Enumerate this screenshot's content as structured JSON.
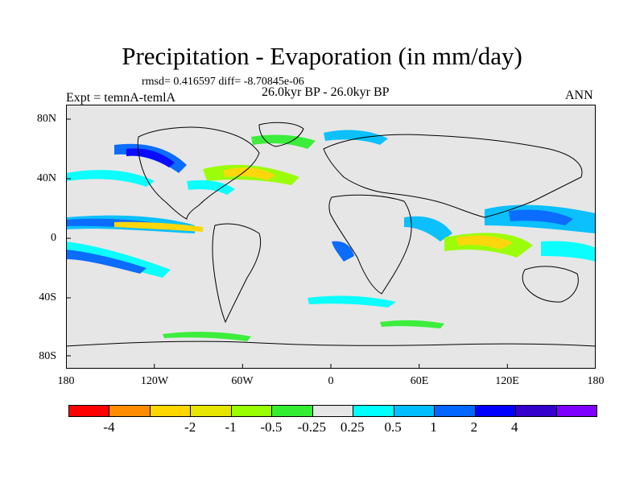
{
  "title": "Precipitation - Evaporation (in mm/day)",
  "stats": "rmsd= 0.416597 diff= -8.70845e-06",
  "period": "26.0kyr BP - 26.0kyr BP",
  "experiment": "Expt = temnA-temlA",
  "season": "ANN",
  "lat_ticks": [
    "80N",
    "40N",
    "0",
    "40S",
    "80S"
  ],
  "lon_ticks": [
    "180",
    "120W",
    "60W",
    "0",
    "60E",
    "120E",
    "180"
  ],
  "colorbar": {
    "colors": [
      "#ff0000",
      "#ff8c00",
      "#ffd700",
      "#e5e500",
      "#99ff00",
      "#33ee33",
      "#e6e6e6",
      "#00ffff",
      "#00bfff",
      "#0066ff",
      "#0000ff",
      "#3300cc",
      "#7f00ff"
    ],
    "labels": [
      "-4",
      "-2",
      "-1",
      "-0.5",
      "-0.25",
      "0.25",
      "0.5",
      "1",
      "2",
      "4"
    ]
  }
}
